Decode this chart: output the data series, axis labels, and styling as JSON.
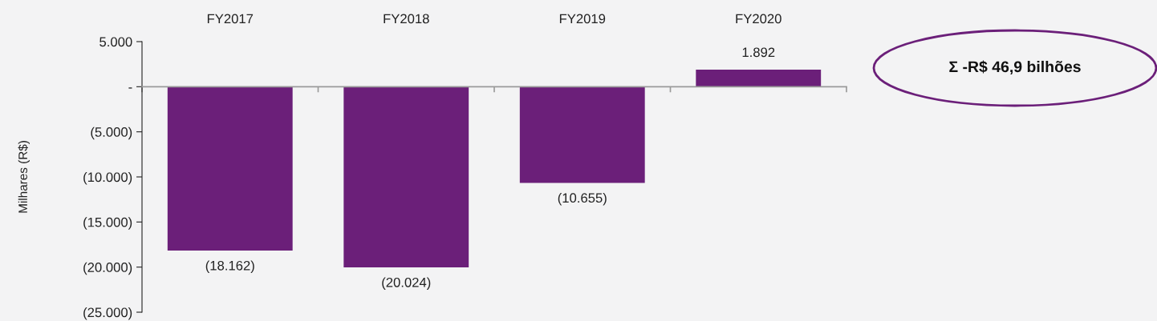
{
  "chart_data": {
    "type": "bar",
    "categories": [
      "FY2017",
      "FY2018",
      "FY2019",
      "FY2020"
    ],
    "values": [
      -18162,
      -20024,
      -10655,
      1892
    ],
    "color": "#6b1f79",
    "value_labels": [
      "(18.162)",
      "(20.024)",
      "(10.655)",
      "1.892"
    ],
    "ylabel": "Milhares (R$)",
    "ylim": [
      -25000,
      5000
    ],
    "yticks": [
      {
        "value": 5000,
        "label": "5.000"
      },
      {
        "value": 0,
        "label": "-"
      },
      {
        "value": -5000,
        "label": "(5.000)"
      },
      {
        "value": -10000,
        "label": "(10.000)"
      },
      {
        "value": -15000,
        "label": "(15.000)"
      },
      {
        "value": -20000,
        "label": "(20.000)"
      },
      {
        "value": -25000,
        "label": "(25.000)"
      }
    ],
    "annotations": [
      "Σ -R$ 46,9 bilhões"
    ]
  }
}
